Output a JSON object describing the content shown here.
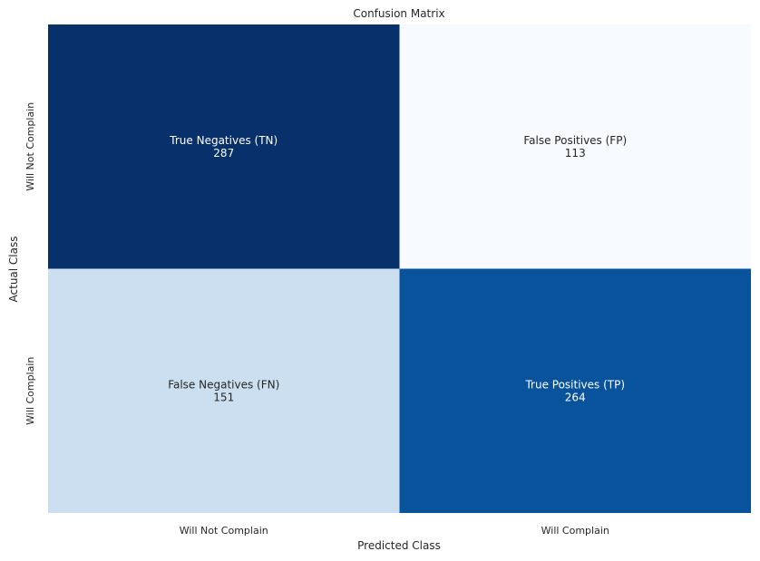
{
  "chart_data": {
    "type": "heatmap",
    "title": "Confusion Matrix",
    "xlabel": "Predicted Class",
    "ylabel": "Actual Class",
    "x_categories": [
      "Will Not Complain",
      "Will Complain"
    ],
    "y_categories": [
      "Will Not Complain",
      "Will Complain"
    ],
    "cell_labels": [
      [
        "True Negatives (TN)",
        "False Positives (FP)"
      ],
      [
        "False Negatives (FN)",
        "True Positives (TP)"
      ]
    ],
    "values": [
      [
        287,
        113
      ],
      [
        151,
        264
      ]
    ],
    "colormap": "Blues",
    "colors": {
      "dark": "#08306b",
      "mid": "#08519c",
      "light": "#cddff0",
      "lightest": "#f7fbff",
      "text_light": "#ffffff",
      "text_dark": "#262626"
    },
    "colorbar": false,
    "grid": false
  }
}
